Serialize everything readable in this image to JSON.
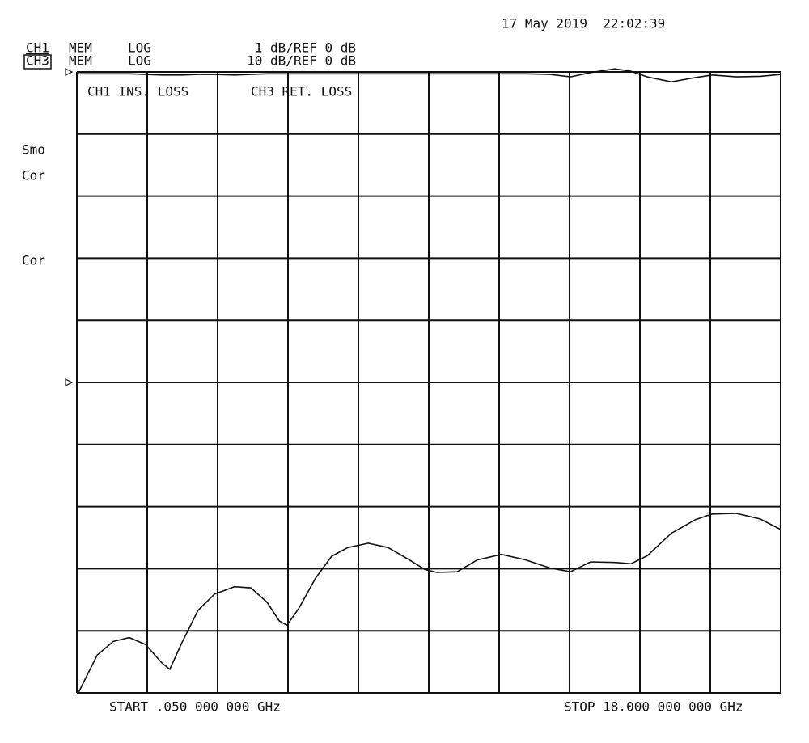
{
  "header": {
    "timestamp": "17 May 2019  22:02:39",
    "channels": [
      {
        "name": "CH1",
        "memory": "MEM",
        "format": "LOG",
        "scale": "1 dB/REF 0 dB"
      },
      {
        "name": "CH3",
        "memory": "MEM",
        "format": "LOG",
        "scale": "10 dB/REF 0 dB"
      }
    ]
  },
  "status": [
    "Smo",
    "Cor",
    "Cor"
  ],
  "chart_data": {
    "type": "line",
    "start_label": "START .050 000 000 GHz",
    "stop_label": "STOP 18.000 000 000 GHz",
    "xlim": [
      0.05,
      18
    ],
    "ylim": [
      -10,
      0
    ],
    "y2lim": [
      -50,
      50
    ],
    "x": [
      0.09,
      0.26,
      0.57,
      0.98,
      1.39,
      1.8,
      2.22,
      2.42,
      2.73,
      3.14,
      3.56,
      4.07,
      4.49,
      4.9,
      5.21,
      5.41,
      5.72,
      6.14,
      6.55,
      6.96,
      7.48,
      7.99,
      8.51,
      8.92,
      9.23,
      9.75,
      10.26,
      10.88,
      11.5,
      12.12,
      12.64,
      13.15,
      13.77,
      14.18,
      14.6,
      15.21,
      15.83,
      16.25,
      16.87,
      17.48,
      18.0
    ],
    "series": [
      {
        "name": "CH1 INS. LOSS",
        "color": "#111111",
        "values": [
          -0.03,
          -0.03,
          -0.03,
          -0.03,
          -0.03,
          -0.04,
          -0.05,
          -0.05,
          -0.05,
          -0.04,
          -0.04,
          -0.05,
          -0.04,
          -0.03,
          -0.03,
          -0.03,
          -0.03,
          -0.03,
          -0.03,
          -0.03,
          -0.03,
          -0.03,
          -0.03,
          -0.03,
          -0.03,
          -0.03,
          -0.03,
          -0.03,
          -0.03,
          -0.04,
          -0.08,
          -0.01,
          0.05,
          0.01,
          -0.08,
          -0.16,
          -0.09,
          -0.05,
          -0.08,
          -0.07,
          -0.04
        ]
      },
      {
        "name": "CH3 RET. LOSS",
        "color": "#111111",
        "axis": "y2",
        "values": [
          -50.0,
          -47.8,
          -43.9,
          -41.7,
          -41.1,
          -42.2,
          -45.2,
          -46.2,
          -41.9,
          -36.7,
          -34.1,
          -32.9,
          -33.1,
          -35.4,
          -38.4,
          -39.1,
          -36.3,
          -31.5,
          -28.0,
          -26.6,
          -25.9,
          -26.6,
          -28.5,
          -30.1,
          -30.6,
          -30.5,
          -28.6,
          -27.7,
          -28.6,
          -29.9,
          -30.5,
          -28.9,
          -29.0,
          -29.2,
          -27.9,
          -24.3,
          -22.1,
          -21.2,
          -21.1,
          -22.0,
          -23.7
        ]
      }
    ]
  }
}
